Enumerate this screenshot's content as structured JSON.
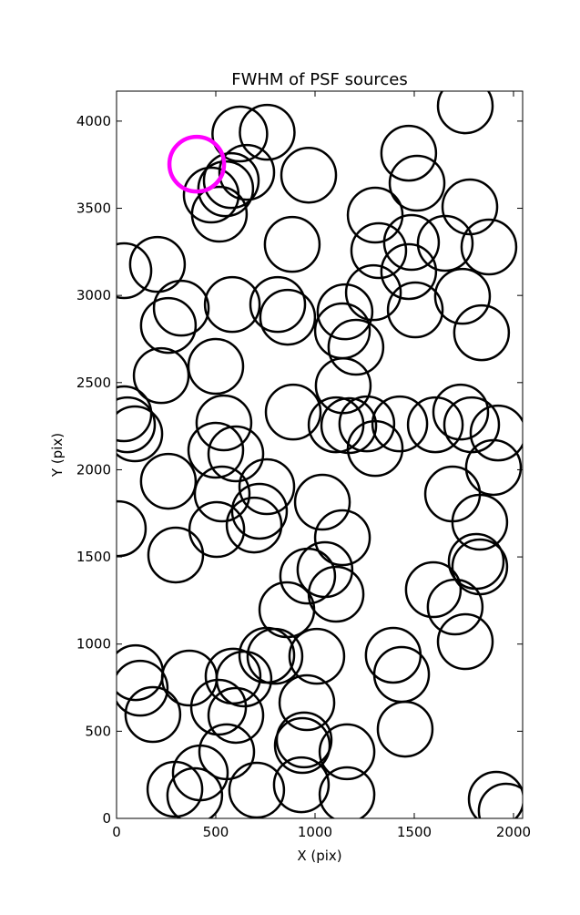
{
  "chart_data": {
    "type": "scatter",
    "title": "FWHM of PSF sources",
    "xlabel": "X (pix)",
    "ylabel": "Y (pix)",
    "xlim": [
      0,
      2046
    ],
    "ylim": [
      0,
      4172
    ],
    "xticks": [
      0,
      500,
      1000,
      1500,
      2000
    ],
    "yticks": [
      0,
      500,
      1000,
      1500,
      2000,
      2500,
      3000,
      3500,
      4000
    ],
    "marker": "open-circle",
    "series": [
      {
        "color": "#000000",
        "x": [
          1757,
          621,
          759,
          1472,
          656,
          968,
          1514,
          578,
          550,
          477,
          518,
          1303,
          1780,
          1486,
          1321,
          1656,
          1876,
          885,
          206,
          37,
          1472,
          1294,
          1743,
          326,
          583,
          812,
          862,
          1505,
          1151,
          261,
          1138,
          1839,
          1206,
          500,
          225,
          1142,
          37,
          890,
          1734,
          55,
          92,
          541,
          1106,
          1170,
          1261,
          1427,
          1606,
          1789,
          1922,
          601,
          500,
          1303,
          261,
          1899,
          757,
          532,
          1693,
          1037,
          720,
          1830,
          9,
          505,
          693,
          1138,
          298,
          1812,
          1830,
          963,
          1050,
          1596,
          1106,
          1706,
          858,
          1757,
          96,
          119,
          757,
          798,
          1009,
          1394,
          367,
          587,
          642,
          1436,
          514,
          959,
          183,
          601,
          945,
          936,
          1454,
          1161,
          555,
          422,
          294,
          394,
          706,
          931,
          1161,
          1913,
          1963
        ],
        "values": [
          4088,
          3926,
          3936,
          3816,
          3706,
          3690,
          3644,
          3659,
          3612,
          3576,
          3466,
          3461,
          3508,
          3304,
          3257,
          3299,
          3278,
          3293,
          3178,
          3142,
          3137,
          3016,
          2995,
          2927,
          2948,
          2948,
          2875,
          2917,
          2906,
          2828,
          2797,
          2786,
          2703,
          2593,
          2540,
          2482,
          2321,
          2331,
          2331,
          2258,
          2206,
          2269,
          2258,
          2253,
          2263,
          2263,
          2258,
          2258,
          2211,
          2091,
          2112,
          2122,
          1934,
          2013,
          1903,
          1861,
          1861,
          1814,
          1762,
          1699,
          1662,
          1657,
          1683,
          1610,
          1511,
          1474,
          1443,
          1390,
          1427,
          1312,
          1286,
          1213,
          1197,
          1014,
          836,
          747,
          936,
          930,
          930,
          936,
          805,
          816,
          800,
          826,
          638,
          664,
          596,
          591,
          450,
          418,
          512,
          382,
          382,
          261,
          167,
          131,
          162,
          193,
          136,
          110,
          42
        ]
      },
      {
        "color": "#ff00ff",
        "x": [
          404
        ],
        "values": [
          3753
        ]
      }
    ]
  }
}
